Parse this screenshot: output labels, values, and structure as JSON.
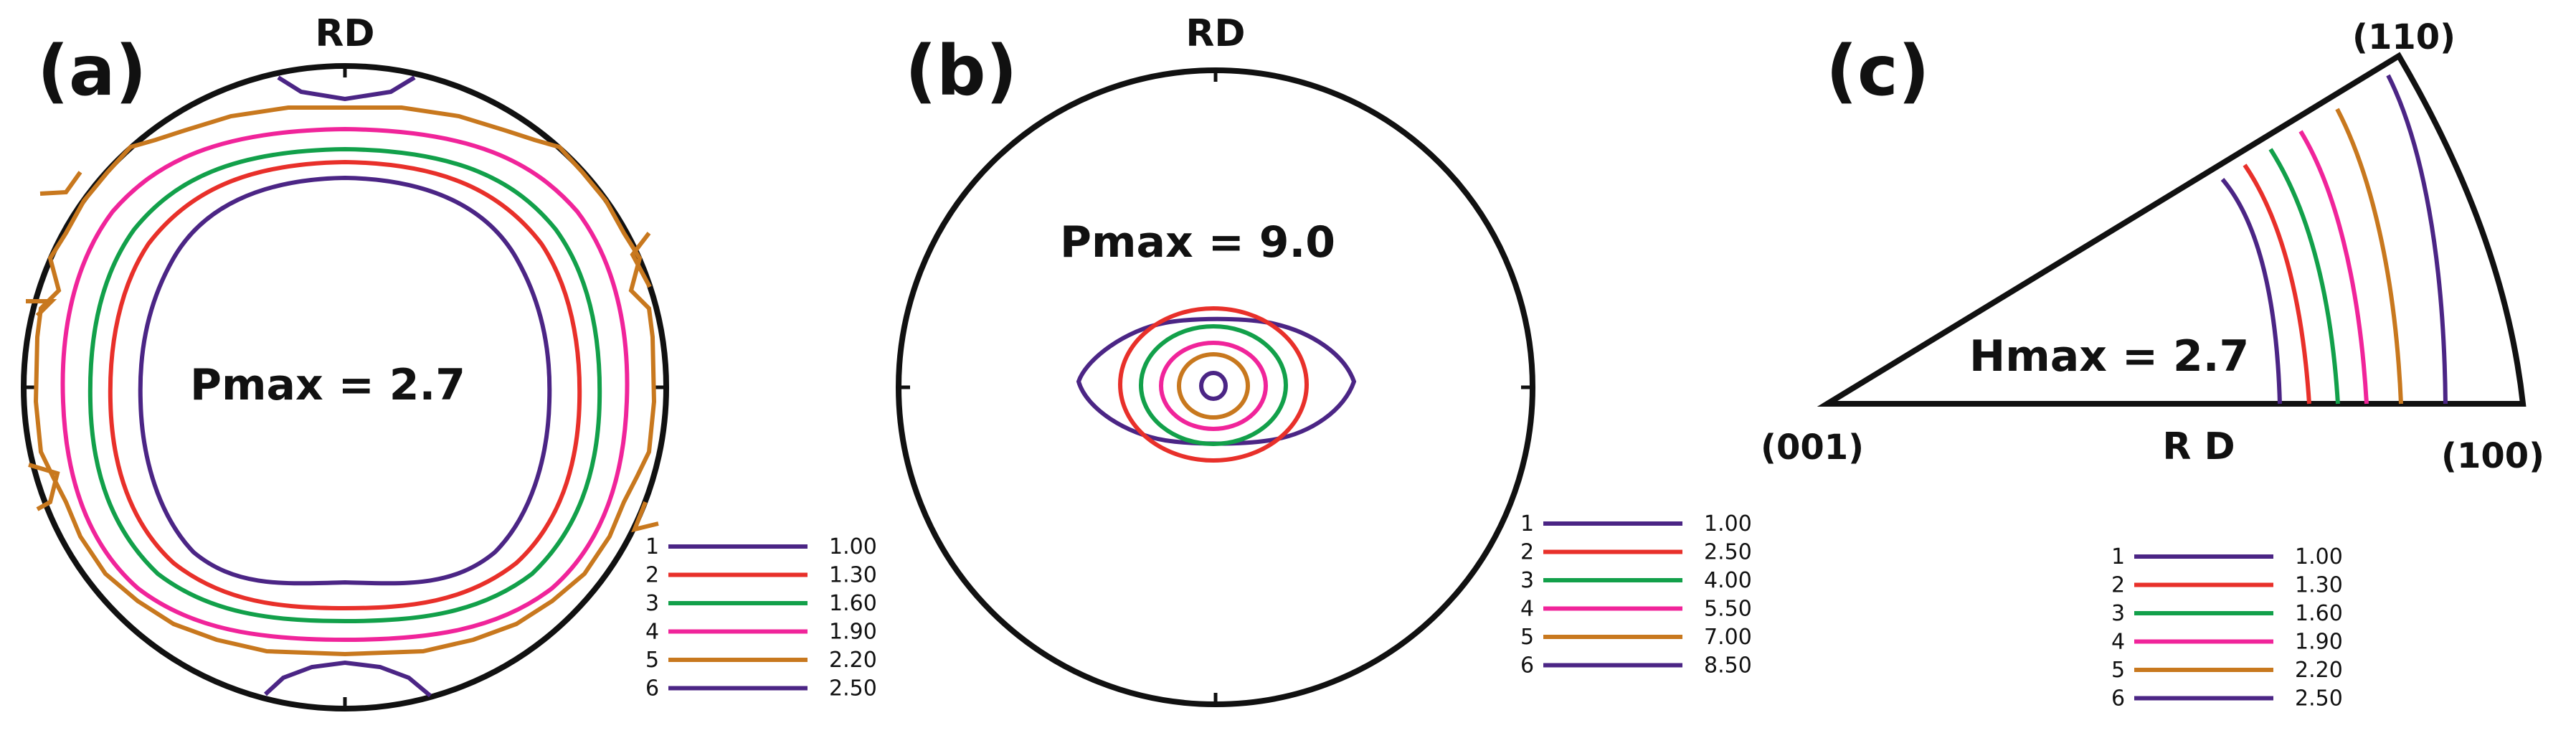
{
  "panels": [
    {
      "label": "(a)",
      "title": "RD",
      "max_text": "Pmax = 2.7",
      "legend": [
        {
          "num": "1",
          "value": "1.00",
          "color": "#4b2585"
        },
        {
          "num": "2",
          "value": "1.30",
          "color": "#e8302a"
        },
        {
          "num": "3",
          "value": "1.60",
          "color": "#12a04a"
        },
        {
          "num": "4",
          "value": "1.90",
          "color": "#f0249a"
        },
        {
          "num": "5",
          "value": "2.20",
          "color": "#c8781e"
        },
        {
          "num": "6",
          "value": "2.50",
          "color": "#4b2585"
        }
      ]
    },
    {
      "label": "(b)",
      "title": "RD",
      "max_text": "Pmax = 9.0",
      "legend": [
        {
          "num": "1",
          "value": "1.00",
          "color": "#4b2585"
        },
        {
          "num": "2",
          "value": "2.50",
          "color": "#e8302a"
        },
        {
          "num": "3",
          "value": "4.00",
          "color": "#12a04a"
        },
        {
          "num": "4",
          "value": "5.50",
          "color": "#f0249a"
        },
        {
          "num": "5",
          "value": "7.00",
          "color": "#c8781e"
        },
        {
          "num": "6",
          "value": "8.50",
          "color": "#4b2585"
        }
      ]
    },
    {
      "label": "(c)",
      "title": "R D",
      "max_text": "Hmax = 2.7",
      "corners": {
        "origin": "(001)",
        "right": "(100)",
        "top": "(110)"
      },
      "legend": [
        {
          "num": "1",
          "value": "1.00",
          "color": "#4b2585"
        },
        {
          "num": "2",
          "value": "1.30",
          "color": "#e8302a"
        },
        {
          "num": "3",
          "value": "1.60",
          "color": "#12a04a"
        },
        {
          "num": "4",
          "value": "1.90",
          "color": "#f0249a"
        },
        {
          "num": "5",
          "value": "2.20",
          "color": "#c8781e"
        },
        {
          "num": "6",
          "value": "2.50",
          "color": "#4b2585"
        }
      ]
    }
  ]
}
